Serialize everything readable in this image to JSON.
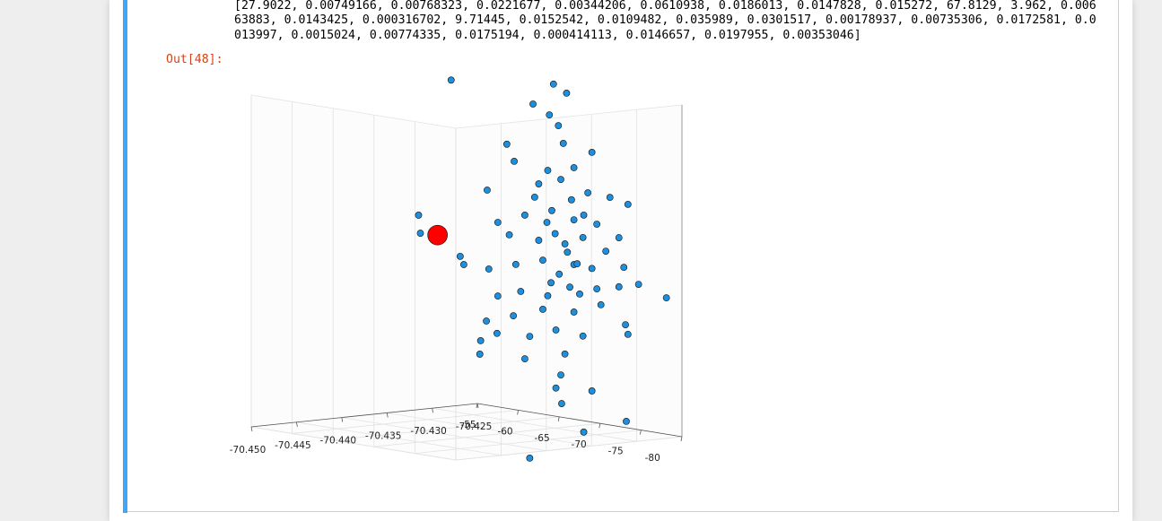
{
  "cell": {
    "prompt": "Out[48]:",
    "output_lines": [
      "[27.9022, 0.00749166, 0.00768323, 0.0221677, 0.00344206, 0.0610938, 0.0186013, 0.0147828, 0.015272, 67.8129, 3.962, 0.006",
      "63883, 0.0143425, 0.000316702, 9.71445, 0.0152542, 0.0109482, 0.035989, 0.0301517, 0.00178937, 0.00735306, 0.0172581, 0.0",
      "013997, 0.0015024, 0.00774335, 0.0175194, 0.000414113, 0.0146657, 0.0197955, 0.00353046]"
    ]
  },
  "chart_data": {
    "type": "scatter3d",
    "xlim": [
      -70.45,
      -70.425
    ],
    "xticks": [
      {
        "value": -70.45,
        "label": "-70.450"
      },
      -70.445,
      {
        "value": -70.44,
        "label": "-70.440"
      },
      -70.435,
      {
        "value": -70.43,
        "label": "-70.430"
      },
      -70.425
    ],
    "ylim": [
      -55,
      -80
    ],
    "yticks": [
      -55,
      -60,
      -65,
      -70,
      -75,
      -80
    ],
    "zlim": [
      0,
      1
    ],
    "grid": true,
    "series": [
      {
        "color": "#1e8fdc",
        "x": [
          -70.4279,
          -70.4315,
          -70.4313,
          -70.4269,
          -70.4265,
          -70.425,
          -70.425,
          -70.425,
          -70.425,
          -70.425,
          -70.425,
          -70.425,
          -70.425,
          -70.425,
          -70.425,
          -70.425,
          -70.425,
          -70.425,
          -70.425,
          -70.425,
          -70.425,
          -70.425,
          -70.425,
          -70.425,
          -70.425,
          -70.425,
          -70.425,
          -70.425,
          -70.425,
          -70.425,
          -70.425,
          -70.425,
          -70.425,
          -70.425,
          -70.425,
          -70.425,
          -70.425,
          -70.425,
          -70.425,
          -70.425,
          -70.425,
          -70.425,
          -70.425,
          -70.425,
          -70.425,
          -70.425,
          -70.425,
          -70.425,
          -70.425,
          -70.425,
          -70.425,
          -70.425,
          -70.425,
          -70.425,
          -70.425,
          -70.425,
          -70.425,
          -70.425,
          -70.425,
          -70.425,
          -70.425,
          -70.425,
          -70.425,
          -70.425,
          -70.425,
          -70.425,
          -70.425,
          -70.425,
          -70.425,
          -70.425,
          -70.425,
          -70.425,
          -70.425,
          -70.425,
          -70.425,
          -70.425,
          -70.425,
          -70.425,
          -70.425
        ],
        "y": [
          -55,
          -55,
          -55,
          -55,
          -55,
          -64.3,
          -65.9,
          -61.8,
          -63.8,
          -64.9,
          -58.6,
          -65.5,
          -69.0,
          -59.5,
          -63.6,
          -66.8,
          -56.2,
          -62.5,
          -65.2,
          -68.5,
          -71.2,
          -73.4,
          -57.5,
          -60.8,
          -64.1,
          -66.8,
          -69.6,
          -72.3,
          -58.9,
          -62.5,
          -65.7,
          -67.9,
          -70.7,
          -56.4,
          -59.7,
          -63.0,
          -66.8,
          -69.0,
          -72.9,
          -74.7,
          -78.1,
          -57.5,
          -60.3,
          -63.6,
          -66.3,
          -69.6,
          -72.3,
          -56.1,
          -59.4,
          -63.0,
          -66.8,
          -70.1,
          -73.1,
          -55.4,
          -57.4,
          -61.4,
          -64.6,
          -67.9,
          -73.4,
          -55.3,
          -60.8,
          -65.7,
          -65.2,
          -64.6,
          -65.3,
          -69.0,
          -73.2,
          -68.0,
          -61.4,
          -64.5,
          -66.0,
          -67.2,
          -65.0,
          -63.5,
          -68.0,
          -62.0,
          -66.5,
          -64.0,
          -67.5
        ],
        "z": [
          0.983,
          0.586,
          0.531,
          0.449,
          0.423,
          1.0,
          0.979,
          0.93,
          0.905,
          0.877,
          0.796,
          0.826,
          0.813,
          0.748,
          0.737,
          0.758,
          0.648,
          0.692,
          0.716,
          0.689,
          0.686,
          0.674,
          0.556,
          0.591,
          0.618,
          0.601,
          0.599,
          0.569,
          0.524,
          0.522,
          0.524,
          0.552,
          0.522,
          0.411,
          0.438,
          0.464,
          0.466,
          0.463,
          0.482,
          0.438,
          0.411,
          0.334,
          0.359,
          0.359,
          0.396,
          0.404,
          0.421,
          0.253,
          0.282,
          0.316,
          0.323,
          0.358,
          0.31,
          0.191,
          0.221,
          0.228,
          0.26,
          0.255,
          0.282,
          0.15,
          0.158,
          0.192,
          0.127,
          0.085,
          0.041,
          0.094,
          0.019,
          -0.034,
          -0.139,
          0.55,
          0.5,
          0.47,
          0.43,
          0.58,
          0.62,
          0.65,
          0.66,
          0.4,
          0.38
        ]
      },
      {
        "color": "#ff0000",
        "x": [
          -70.4294
        ],
        "y": [
          -55
        ],
        "z": [
          0.52
        ]
      }
    ]
  }
}
